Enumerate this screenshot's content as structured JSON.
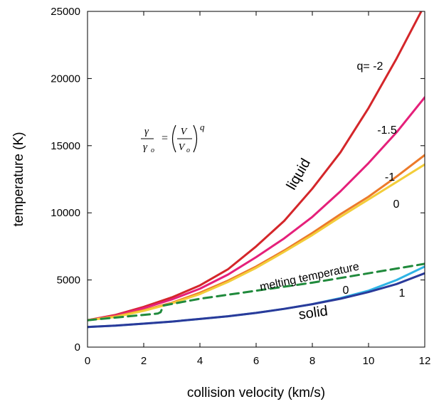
{
  "chart_data": {
    "type": "line",
    "title": "",
    "xlabel": "collision velocity (km/s)",
    "ylabel": "temperature (K)",
    "xlim": [
      0,
      12
    ],
    "ylim": [
      0,
      25000
    ],
    "xticks": [
      0,
      2,
      4,
      6,
      8,
      10,
      12
    ],
    "yticks": [
      0,
      5000,
      10000,
      15000,
      20000,
      25000
    ],
    "grid": false,
    "legend": "none",
    "annotations": {
      "liquid": "liquid",
      "solid": "solid",
      "melting": "melting temperature",
      "q_prefix": "q= -2",
      "q_m15": "-1.5",
      "q_m1": "-1",
      "q_0_liquid": "0",
      "q_0_solid": "0",
      "q_1_solid": "1",
      "formula": {
        "num": "γ",
        "den": "γ",
        "den_sub": "o",
        "eq": "=",
        "frac2_num": "V",
        "frac2_den": "V",
        "frac2_den_sub": "o",
        "exponent": "q"
      }
    },
    "series": [
      {
        "key": "liquid_q_m2",
        "color": "#d4262a",
        "dashed": false,
        "x": [
          0,
          1,
          2,
          3,
          4,
          5,
          6,
          7,
          8,
          9,
          10,
          11,
          12
        ],
        "y": [
          2000,
          2400,
          3000,
          3700,
          4600,
          5800,
          7500,
          9400,
          11800,
          14500,
          17800,
          21500,
          25500
        ]
      },
      {
        "key": "liquid_q_m1_5",
        "color": "#e5207a",
        "dashed": false,
        "x": [
          0,
          1,
          2,
          3,
          4,
          5,
          6,
          7,
          8,
          9,
          10,
          11,
          12
        ],
        "y": [
          2000,
          2350,
          2900,
          3550,
          4350,
          5400,
          6700,
          8100,
          9700,
          11600,
          13700,
          16000,
          18600
        ]
      },
      {
        "key": "liquid_q_m1",
        "color": "#ec7a2a",
        "dashed": false,
        "x": [
          0,
          1,
          2,
          3,
          4,
          5,
          6,
          7,
          8,
          9,
          10,
          11,
          12
        ],
        "y": [
          2000,
          2300,
          2750,
          3300,
          4050,
          4950,
          6000,
          7200,
          8500,
          9900,
          11200,
          12700,
          14300
        ]
      },
      {
        "key": "liquid_q_0",
        "color": "#f3cd3a",
        "dashed": false,
        "x": [
          0,
          1,
          2,
          3,
          4,
          5,
          6,
          7,
          8,
          9,
          10,
          11,
          12
        ],
        "y": [
          2000,
          2250,
          2700,
          3250,
          3950,
          4850,
          5900,
          7100,
          8350,
          9700,
          11000,
          12300,
          13600
        ]
      },
      {
        "key": "melting",
        "color": "#208a3c",
        "dashed": true,
        "x": [
          0,
          2.5,
          2.6,
          2.7,
          4,
          6,
          8,
          10,
          12
        ],
        "y": [
          2000,
          2500,
          2600,
          3100,
          3600,
          4200,
          4800,
          5500,
          6200
        ]
      },
      {
        "key": "solid_q_0",
        "color": "#2fb4e5",
        "dashed": false,
        "x": [
          0,
          1,
          2,
          3,
          4,
          5,
          6,
          7,
          8,
          9,
          10,
          11,
          12
        ],
        "y": [
          1500,
          1600,
          1750,
          1900,
          2100,
          2300,
          2550,
          2850,
          3200,
          3650,
          4200,
          5000,
          6000
        ]
      },
      {
        "key": "solid_q_1",
        "color": "#2a3a9a",
        "dashed": false,
        "x": [
          0,
          1,
          2,
          3,
          4,
          5,
          6,
          7,
          8,
          9,
          10,
          11,
          12
        ],
        "y": [
          1500,
          1600,
          1750,
          1900,
          2100,
          2300,
          2550,
          2850,
          3200,
          3600,
          4100,
          4700,
          5500
        ]
      }
    ]
  }
}
